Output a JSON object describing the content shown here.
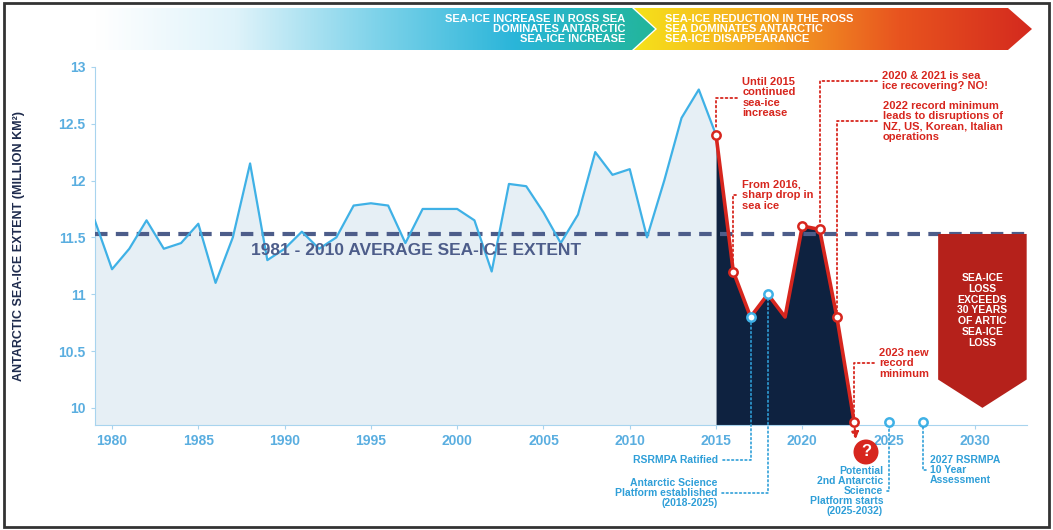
{
  "chart_data": {
    "type": "line",
    "banners": [
      "SEA-ICE INCREASE IN ROSS SEA\nDOMINATES ANTARCTIC\nSEA-ICE INCREASE",
      "SEA-ICE REDUCTION IN THE ROSS\nSEA DOMINATES ANTARCTIC\nSEA-ICE DISAPPEARANCE"
    ],
    "y_label": "ANTARCTIC SEA-ICE EXTENT (MILLION KM²)",
    "x": [
      1979,
      1980,
      1981,
      1982,
      1983,
      1984,
      1985,
      1986,
      1987,
      1988,
      1989,
      1990,
      1991,
      1992,
      1993,
      1994,
      1995,
      1996,
      1997,
      1998,
      1999,
      2000,
      2001,
      2002,
      2003,
      2004,
      2005,
      2006,
      2007,
      2008,
      2009,
      2010,
      2011,
      2012,
      2013,
      2014,
      2015,
      2016,
      2017,
      2018,
      2019,
      2020,
      2021,
      2022,
      2023
    ],
    "series": [
      {
        "color": "#3fb1e6",
        "line_style": "solid",
        "values": [
          11.65,
          11.22,
          11.4,
          11.65,
          11.4,
          11.45,
          11.62,
          11.1,
          11.5,
          12.15,
          11.3,
          11.4,
          11.55,
          11.4,
          11.5,
          11.78,
          11.8,
          11.78,
          11.45,
          11.75,
          11.75,
          11.75,
          11.65,
          11.2,
          11.97,
          11.95,
          11.72,
          11.45,
          11.7,
          12.25,
          12.05,
          12.1,
          11.5,
          12.0,
          12.55,
          12.8,
          12.4,
          null,
          null,
          null,
          null,
          null,
          null,
          null,
          null
        ]
      },
      {
        "color": "#d7261e",
        "line_style": "solid",
        "values": [
          null,
          null,
          null,
          null,
          null,
          null,
          null,
          null,
          null,
          null,
          null,
          null,
          null,
          null,
          null,
          null,
          null,
          null,
          null,
          null,
          null,
          null,
          null,
          null,
          null,
          null,
          null,
          null,
          null,
          null,
          null,
          null,
          null,
          null,
          null,
          null,
          12.4,
          11.2,
          10.8,
          11.0,
          10.8,
          11.6,
          11.57,
          10.8,
          9.88
        ]
      }
    ],
    "xlim": [
      1979,
      2033
    ],
    "xticks": [
      1980,
      1985,
      1990,
      1995,
      2000,
      2005,
      2010,
      2015,
      2020,
      2025,
      2030
    ],
    "ylim": [
      9.85,
      13
    ],
    "yticks": [
      10,
      10.5,
      11,
      11.5,
      12,
      12.5,
      13
    ],
    "grid": false,
    "reference_line": {
      "value": 11.53,
      "label": "1981 - 2010 AVERAGE SEA-ICE EXTENT"
    },
    "annotations": [
      {
        "points": [
          {
            "x": 2015,
            "y": 12.4
          }
        ],
        "text": "Until 2015\ncontinued\nsea-ice\nincrease"
      },
      {
        "points": [
          {
            "x": 2016,
            "y": 11.2
          }
        ],
        "text": "From 2016,\nsharp drop in\nsea ice"
      },
      {
        "points": [
          {
            "x": 2021,
            "y": 11.57
          },
          {
            "x": 2020,
            "y": 11.6
          }
        ],
        "text": "2020 & 2021 is sea\nice recovering? NO!"
      },
      {
        "points": [
          {
            "x": 2022,
            "y": 10.8
          }
        ],
        "text": "2022 record minimum\nleads to disruptions of\nNZ, US, Korean, Italian\noperations"
      },
      {
        "points": [
          {
            "x": 2023,
            "y": 9.88
          }
        ],
        "text": "2023 new\nrecord\nminimum"
      }
    ],
    "milestones": [
      {
        "x": 2017,
        "y": 10.8,
        "text": "RSRMPA Ratified"
      },
      {
        "x": 2018,
        "y": 11.0,
        "text": "Antarctic Science\nPlatform established\n(2018-2025)"
      },
      {
        "x": 2025,
        "y": 9.88,
        "text": "Potential\n2nd Antarctic\nScience\nPlatform starts\n(2025-2032)"
      },
      {
        "x": 2027,
        "y": 9.88,
        "text": "2027 RSRMPA\n10 Year\nAssessment"
      }
    ],
    "question": "?",
    "side_note": "SEA-ICE\nLOSS\nEXCEEDS\n30 YEARS\nOF ARTIC\nSEA-ICE\nLOSS"
  }
}
